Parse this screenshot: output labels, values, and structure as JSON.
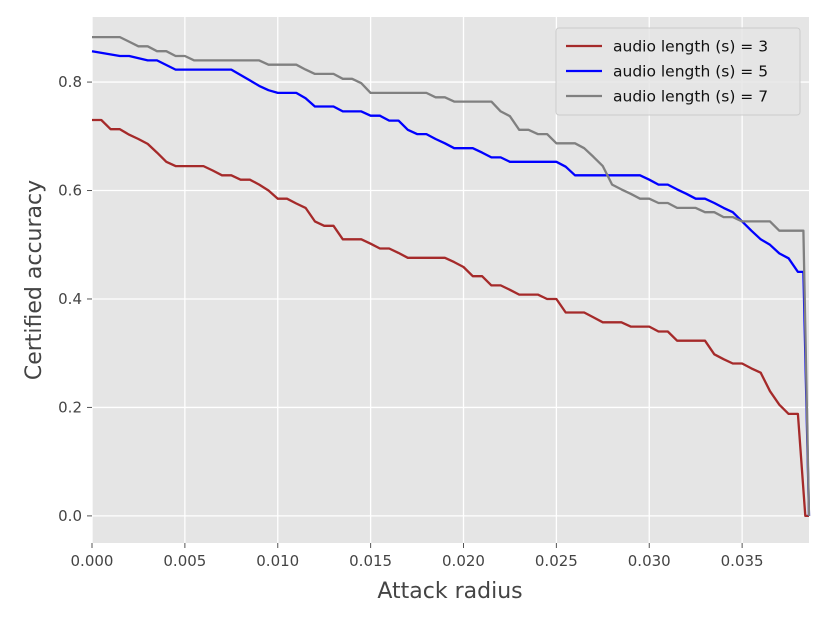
{
  "chart_data": {
    "type": "line",
    "title": "",
    "xlabel": "Attack radius",
    "ylabel": "Certified accuracy",
    "xlim": [
      0,
      0.0386
    ],
    "ylim": [
      -0.05,
      0.92
    ],
    "xticks": [
      0,
      0.005,
      0.01,
      0.015,
      0.02,
      0.025,
      0.03,
      0.035
    ],
    "xtick_labels": [
      "0.000",
      "0.005",
      "0.010",
      "0.015",
      "0.020",
      "0.025",
      "0.030",
      "0.035"
    ],
    "yticks": [
      0,
      0.2,
      0.4,
      0.6,
      0.8
    ],
    "ytick_labels": [
      "0.0",
      "0.2",
      "0.4",
      "0.6",
      "0.8"
    ],
    "grid": true,
    "legend_position": "top-right",
    "series": [
      {
        "name": "audio length (s) = 3",
        "color": "#a52a2a",
        "x": [
          0,
          0.0005,
          0.001,
          0.0015,
          0.002,
          0.0025,
          0.003,
          0.0035,
          0.004,
          0.0045,
          0.005,
          0.0055,
          0.006,
          0.0065,
          0.007,
          0.0075,
          0.008,
          0.0085,
          0.009,
          0.0095,
          0.01,
          0.0105,
          0.011,
          0.0115,
          0.012,
          0.0125,
          0.013,
          0.0135,
          0.014,
          0.0145,
          0.015,
          0.0155,
          0.016,
          0.0165,
          0.017,
          0.0175,
          0.018,
          0.0185,
          0.019,
          0.0195,
          0.02,
          0.0205,
          0.021,
          0.0215,
          0.022,
          0.0225,
          0.023,
          0.0235,
          0.024,
          0.0245,
          0.025,
          0.0255,
          0.026,
          0.0265,
          0.027,
          0.0275,
          0.028,
          0.0285,
          0.029,
          0.0295,
          0.03,
          0.0305,
          0.031,
          0.0315,
          0.032,
          0.0325,
          0.033,
          0.0335,
          0.034,
          0.0345,
          0.035,
          0.0355,
          0.036,
          0.0365,
          0.037,
          0.0375,
          0.038,
          0.0384,
          0.0386
        ],
        "y": [
          0.73,
          0.73,
          0.713,
          0.713,
          0.703,
          0.695,
          0.686,
          0.67,
          0.653,
          0.645,
          0.645,
          0.645,
          0.645,
          0.637,
          0.628,
          0.628,
          0.62,
          0.62,
          0.611,
          0.6,
          0.585,
          0.585,
          0.576,
          0.568,
          0.543,
          0.535,
          0.535,
          0.51,
          0.51,
          0.51,
          0.502,
          0.493,
          0.493,
          0.485,
          0.476,
          0.476,
          0.476,
          0.476,
          0.476,
          0.468,
          0.459,
          0.442,
          0.442,
          0.425,
          0.425,
          0.417,
          0.408,
          0.408,
          0.408,
          0.4,
          0.4,
          0.375,
          0.375,
          0.375,
          0.366,
          0.357,
          0.357,
          0.357,
          0.349,
          0.349,
          0.349,
          0.34,
          0.34,
          0.323,
          0.323,
          0.323,
          0.323,
          0.298,
          0.289,
          0.281,
          0.281,
          0.272,
          0.264,
          0.23,
          0.205,
          0.188,
          0.188,
          0.0,
          0.0
        ]
      },
      {
        "name": "audio length (s) = 5",
        "color": "#0000ff",
        "x": [
          0,
          0.0015,
          0.002,
          0.003,
          0.0035,
          0.0045,
          0.005,
          0.0075,
          0.008,
          0.0085,
          0.009,
          0.0095,
          0.01,
          0.011,
          0.0115,
          0.012,
          0.013,
          0.0135,
          0.0145,
          0.015,
          0.0155,
          0.016,
          0.0165,
          0.017,
          0.0175,
          0.018,
          0.0185,
          0.019,
          0.0195,
          0.0205,
          0.021,
          0.0215,
          0.022,
          0.0225,
          0.025,
          0.0255,
          0.026,
          0.0265,
          0.0295,
          0.03,
          0.0305,
          0.031,
          0.0315,
          0.032,
          0.0325,
          0.033,
          0.0335,
          0.034,
          0.0345,
          0.035,
          0.0355,
          0.036,
          0.0365,
          0.037,
          0.0375,
          0.038,
          0.0383,
          0.0386
        ],
        "y": [
          0.857,
          0.848,
          0.848,
          0.84,
          0.84,
          0.823,
          0.823,
          0.823,
          0.813,
          0.803,
          0.793,
          0.785,
          0.78,
          0.78,
          0.77,
          0.755,
          0.755,
          0.746,
          0.746,
          0.738,
          0.738,
          0.729,
          0.729,
          0.712,
          0.704,
          0.704,
          0.695,
          0.687,
          0.678,
          0.678,
          0.67,
          0.661,
          0.661,
          0.653,
          0.653,
          0.644,
          0.628,
          0.628,
          0.628,
          0.62,
          0.611,
          0.611,
          0.602,
          0.594,
          0.585,
          0.585,
          0.577,
          0.568,
          0.56,
          0.543,
          0.526,
          0.51,
          0.5,
          0.484,
          0.475,
          0.45,
          0.45,
          0.0
        ]
      },
      {
        "name": "audio length (s) = 7",
        "color": "#808080",
        "x": [
          0,
          0.0015,
          0.0025,
          0.003,
          0.0035,
          0.004,
          0.0045,
          0.005,
          0.0055,
          0.009,
          0.0095,
          0.011,
          0.0115,
          0.012,
          0.013,
          0.0135,
          0.014,
          0.0145,
          0.015,
          0.018,
          0.0185,
          0.019,
          0.0195,
          0.0215,
          0.022,
          0.0225,
          0.023,
          0.0235,
          0.024,
          0.0245,
          0.025,
          0.0255,
          0.026,
          0.0265,
          0.027,
          0.0275,
          0.028,
          0.0285,
          0.029,
          0.0295,
          0.03,
          0.0305,
          0.031,
          0.0315,
          0.0325,
          0.033,
          0.0335,
          0.034,
          0.0345,
          0.035,
          0.0365,
          0.037,
          0.0383,
          0.0386
        ],
        "y": [
          0.883,
          0.883,
          0.866,
          0.866,
          0.857,
          0.857,
          0.848,
          0.848,
          0.84,
          0.84,
          0.832,
          0.832,
          0.823,
          0.815,
          0.815,
          0.806,
          0.806,
          0.798,
          0.78,
          0.78,
          0.772,
          0.772,
          0.764,
          0.764,
          0.746,
          0.737,
          0.712,
          0.712,
          0.704,
          0.704,
          0.687,
          0.687,
          0.687,
          0.678,
          0.662,
          0.645,
          0.611,
          0.602,
          0.594,
          0.585,
          0.585,
          0.577,
          0.577,
          0.568,
          0.568,
          0.56,
          0.56,
          0.551,
          0.551,
          0.543,
          0.543,
          0.526,
          0.526,
          0.0
        ]
      }
    ]
  }
}
